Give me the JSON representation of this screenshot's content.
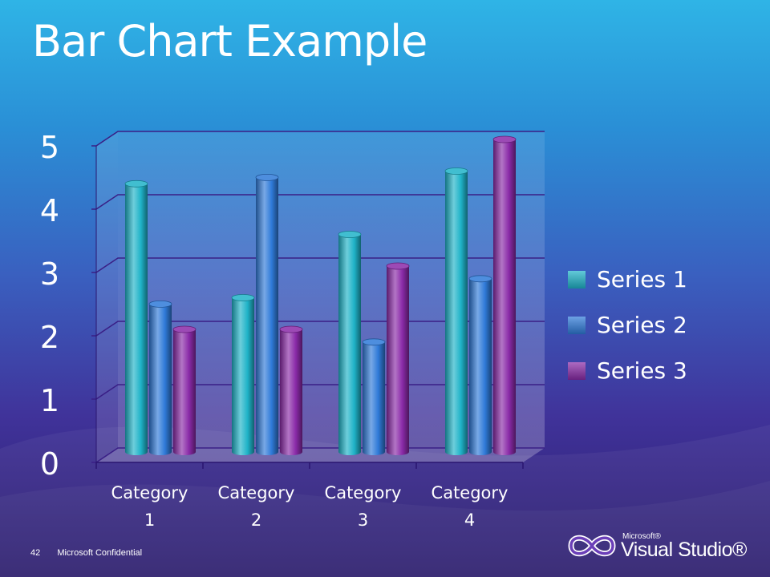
{
  "slide": {
    "title": "Bar Chart Example",
    "page_number": "42",
    "confidential": "Microsoft Confidential",
    "logo": {
      "brand": "Microsoft®",
      "product": "Visual Studio®",
      "icon": "infinity-icon"
    }
  },
  "chart_data": {
    "type": "bar",
    "style": "3d-cylinder",
    "title": "",
    "xlabel": "",
    "ylabel": "",
    "categories": [
      "Category 1",
      "Category 2",
      "Category 3",
      "Category 4"
    ],
    "category_label_lines": [
      [
        "Category",
        "1"
      ],
      [
        "Category",
        "2"
      ],
      [
        "Category",
        "3"
      ],
      [
        "Category",
        "4"
      ]
    ],
    "y_ticks": [
      "0",
      "1",
      "2",
      "3",
      "4",
      "5"
    ],
    "ylim": [
      0,
      5
    ],
    "grid": true,
    "legend": "right",
    "series": [
      {
        "name": "Series 1",
        "values": [
          4.3,
          2.5,
          3.5,
          4.5
        ],
        "color": "#1fb3c8"
      },
      {
        "name": "Series 2",
        "values": [
          2.4,
          4.4,
          1.8,
          2.8
        ],
        "color": "#2f7ad8"
      },
      {
        "name": "Series 3",
        "values": [
          2.0,
          2.0,
          3.0,
          5.0
        ],
        "color": "#8a2aa8"
      }
    ]
  }
}
